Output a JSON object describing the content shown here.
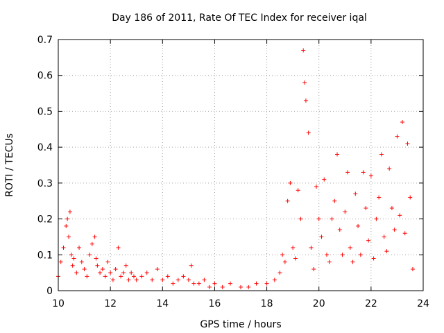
{
  "chart_data": {
    "type": "scatter",
    "title": "Day 186 of 2011, Rate Of TEC Index for receiver iqal",
    "xlabel": "GPS time / hours",
    "ylabel": "ROTI / TECUs",
    "xlim": [
      10,
      24
    ],
    "ylim": [
      0,
      0.7
    ],
    "x_ticks": [
      "10",
      "12",
      "14",
      "16",
      "18",
      "20",
      "22",
      "24"
    ],
    "y_ticks": [
      "0",
      "0.1",
      "0.2",
      "0.3",
      "0.4",
      "0.5",
      "0.6",
      "0.7"
    ],
    "grid": true,
    "marker": "+",
    "color": "#ff0000",
    "series": [
      {
        "x": [
          10.0,
          10.1,
          10.2,
          10.3,
          10.35,
          10.4,
          10.45,
          10.5,
          10.55,
          10.6,
          10.7,
          10.8,
          10.9,
          11.0,
          11.1,
          11.2,
          11.3,
          11.4,
          11.45,
          11.5,
          11.6,
          11.7,
          11.8,
          11.9,
          12.0,
          12.1,
          12.2,
          12.3,
          12.4,
          12.5,
          12.6,
          12.7,
          12.8,
          12.9,
          13.0,
          13.2,
          13.4,
          13.6,
          13.8,
          14.0,
          14.2,
          14.4,
          14.6,
          14.8,
          15.0,
          15.1,
          15.2,
          15.4,
          15.6,
          15.8,
          16.0,
          16.3,
          16.6,
          17.0,
          17.3,
          17.6,
          18.0,
          18.3,
          18.5,
          18.6,
          18.7,
          18.8,
          18.9,
          19.0,
          19.1,
          19.2,
          19.3,
          19.4,
          19.45,
          19.5,
          19.6,
          19.7,
          19.8,
          19.9,
          20.0,
          20.1,
          20.2,
          20.3,
          20.4,
          20.5,
          20.6,
          20.7,
          20.8,
          20.9,
          21.0,
          21.1,
          21.2,
          21.3,
          21.4,
          21.5,
          21.6,
          21.7,
          21.8,
          21.9,
          22.0,
          22.1,
          22.2,
          22.3,
          22.4,
          22.5,
          22.6,
          22.7,
          22.8,
          22.9,
          23.0,
          23.1,
          23.2,
          23.3,
          23.4,
          23.5,
          23.6
        ],
        "y": [
          0.04,
          0.08,
          0.12,
          0.18,
          0.2,
          0.15,
          0.22,
          0.1,
          0.07,
          0.09,
          0.05,
          0.12,
          0.08,
          0.06,
          0.04,
          0.1,
          0.13,
          0.15,
          0.09,
          0.07,
          0.05,
          0.06,
          0.04,
          0.08,
          0.05,
          0.03,
          0.06,
          0.12,
          0.04,
          0.05,
          0.07,
          0.03,
          0.05,
          0.04,
          0.03,
          0.04,
          0.05,
          0.03,
          0.06,
          0.03,
          0.04,
          0.02,
          0.03,
          0.04,
          0.03,
          0.07,
          0.02,
          0.02,
          0.03,
          0.01,
          0.02,
          0.01,
          0.02,
          0.01,
          0.01,
          0.02,
          0.02,
          0.03,
          0.05,
          0.1,
          0.08,
          0.25,
          0.3,
          0.12,
          0.09,
          0.28,
          0.2,
          0.67,
          0.58,
          0.53,
          0.44,
          0.12,
          0.06,
          0.29,
          0.2,
          0.15,
          0.31,
          0.1,
          0.08,
          0.2,
          0.25,
          0.38,
          0.17,
          0.1,
          0.22,
          0.33,
          0.12,
          0.08,
          0.27,
          0.18,
          0.1,
          0.33,
          0.23,
          0.14,
          0.32,
          0.09,
          0.2,
          0.26,
          0.38,
          0.15,
          0.11,
          0.34,
          0.23,
          0.17,
          0.43,
          0.21,
          0.47,
          0.16,
          0.41,
          0.26,
          0.06
        ]
      }
    ]
  }
}
